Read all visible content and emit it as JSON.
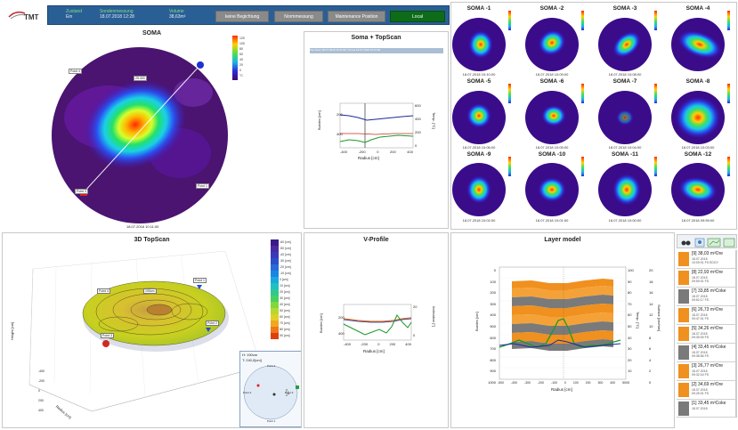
{
  "app": {
    "logo_text": "TMT"
  },
  "header": {
    "status_label": "Zustand",
    "status_value": "Ein",
    "measure_label": "Sondenmessung",
    "measure_value": "18.07.2018 12:28",
    "volume_label": "Volume",
    "volume_value": "38,63m³",
    "buttons": [
      "keine Begichtung",
      "Normmessung",
      "Maintenance Position",
      "Local"
    ]
  },
  "soma": {
    "title": "SOMA",
    "date": "18.07.2018 10:11:00",
    "points": [
      "Point 4",
      "Point 1",
      "Point 3"
    ],
    "center_label": "25.400",
    "colorbar": [
      "120",
      "100",
      "80",
      "60",
      "40",
      "20",
      "0"
    ],
    "unit": "°C"
  },
  "soma_topscan": {
    "title": "Soma + TopScan",
    "info": "Top-Scan 18.07.2018 10:11:00 | Soma 18.07.2018 10:11:00",
    "xlabel": "Radius [cm]",
    "ylabel_left": "Burden [cm]",
    "ylabel_right": "Temp. [°C]",
    "xticks": [
      "-400",
      "-200",
      "0",
      "200",
      "400"
    ],
    "yticks_left": [
      "200",
      "400"
    ],
    "yticks_right": [
      "600",
      "400",
      "200",
      "0"
    ]
  },
  "minis": [
    {
      "title": "SOMA -1",
      "date": "18.07.2018 10:10:00"
    },
    {
      "title": "SOMA -2",
      "date": "18.07.2018 10:09:00"
    },
    {
      "title": "SOMA -3",
      "date": "18.07.2018 10:08:00"
    },
    {
      "title": "SOMA -4",
      "date": ""
    },
    {
      "title": "SOMA -5",
      "date": "18.07.2018 10:06:00"
    },
    {
      "title": "SOMA -6",
      "date": "18.07.2018 10:05:00"
    },
    {
      "title": "SOMA -7",
      "date": "18.07.2018 10:04:00"
    },
    {
      "title": "SOMA -8",
      "date": "18.07.2018 10:03:00"
    },
    {
      "title": "SOMA -9",
      "date": "18.07.2018 10:02:00"
    },
    {
      "title": "SOMA -10",
      "date": "18.07.2018 10:01:00"
    },
    {
      "title": "SOMA -11",
      "date": "18.07.2018 10:00:00"
    },
    {
      "title": "SOMA -12",
      "date": "18.07.2018 09:59:00"
    }
  ],
  "topscan3d": {
    "title": "3D TopScan",
    "points": [
      "Point 4",
      "Point 3",
      "Point 1",
      "Point 2"
    ],
    "peak_label": "190cm",
    "legend": [
      "-60 [cm]",
      "-50 [cm]",
      "-40 [cm]",
      "-30 [cm]",
      "-20 [cm]",
      "-10 [cm]",
      "0 [cm]",
      "10 [cm]",
      "20 [cm]",
      "30 [cm]",
      "40 [cm]",
      "50 [cm]",
      "60 [cm]",
      "70 [cm]",
      "80 [cm]",
      "90 [cm]"
    ],
    "axis_z": "Height [cm]",
    "axis_x": "Radius [cm]",
    "ticks": [
      "-400",
      "-200",
      "0",
      "200",
      "400"
    ],
    "inset": {
      "line1": "H: 190cm",
      "line2": "T: 240,0[cm]",
      "points": [
        "Point 4",
        "Point 2",
        "Point 3",
        "Point 1"
      ]
    }
  },
  "vprofile": {
    "title": "V-Profile",
    "xlabel": "Radius [cm]",
    "ylabel_left": "Burden [cm]",
    "ylabel_right": "Inclination [°]",
    "xticks": [
      "-400",
      "-200",
      "0",
      "200",
      "400"
    ],
    "yticks_left": [
      "200",
      "400"
    ],
    "yticks_right": [
      "20",
      "0"
    ]
  },
  "layer_model": {
    "title": "Layer model",
    "xlabel": "Radius [cm]",
    "ylabel_left": "Burden [cm]",
    "ylabel_mid": "Temp. [°C]",
    "ylabel_right": "Surface [cm/min]",
    "yticks_left": [
      "0",
      "100",
      "200",
      "300",
      "400",
      "500",
      "600",
      "700",
      "800",
      "900",
      "1000"
    ],
    "yticks_right": [
      "100",
      "90",
      "80",
      "70",
      "60",
      "50",
      "40",
      "30",
      "20",
      "10",
      "0"
    ],
    "yticks_right2": [
      "20",
      "18",
      "16",
      "14",
      "12",
      "10",
      "8",
      "6",
      "4",
      "2",
      "0"
    ],
    "xticks": [
      "-500",
      "-400",
      "-300",
      "-200",
      "-100",
      "0",
      "100",
      "200",
      "300",
      "400",
      "500"
    ]
  },
  "layers": [
    {
      "title": "[9] 38,03 m³Ore",
      "sub1": "18.07.2018",
      "sub2": "10:09:01   FS EDGY",
      "color": "#f0901e"
    },
    {
      "title": "[8] 22,93 m³Ore",
      "sub1": "18.07.2018",
      "sub2": "09:59:01   FS",
      "color": "#f0901e"
    },
    {
      "title": "[7] 33,85 m³Coke",
      "sub1": "18.07.2018",
      "sub2": "09:52:17   FS",
      "color": "#7a7a7a"
    },
    {
      "title": "[6] 26,73 m³Ore",
      "sub1": "18.07.2018",
      "sub2": "09:47:01   FS",
      "color": "#f0901e"
    },
    {
      "title": "[5] 34,26 m³Ore",
      "sub1": "18.07.2018",
      "sub2": "09:39:09   FS",
      "color": "#f0901e"
    },
    {
      "title": "[4] 33,45 m³Coke",
      "sub1": "18.07.2018",
      "sub2": "09:38:56   FS",
      "color": "#7a7a7a"
    },
    {
      "title": "[3] 26,77 m³Ore",
      "sub1": "18.07.2018",
      "sub2": "09:32:16   FS",
      "color": "#f0901e"
    },
    {
      "title": "[2] 34,69 m³Ore",
      "sub1": "18.07.2018",
      "sub2": "09:25:01   FS",
      "color": "#f0901e"
    },
    {
      "title": "[1] 33,45 m³Coke",
      "sub1": "18.07.2018",
      "sub2": "",
      "color": "#7a7a7a"
    }
  ]
}
